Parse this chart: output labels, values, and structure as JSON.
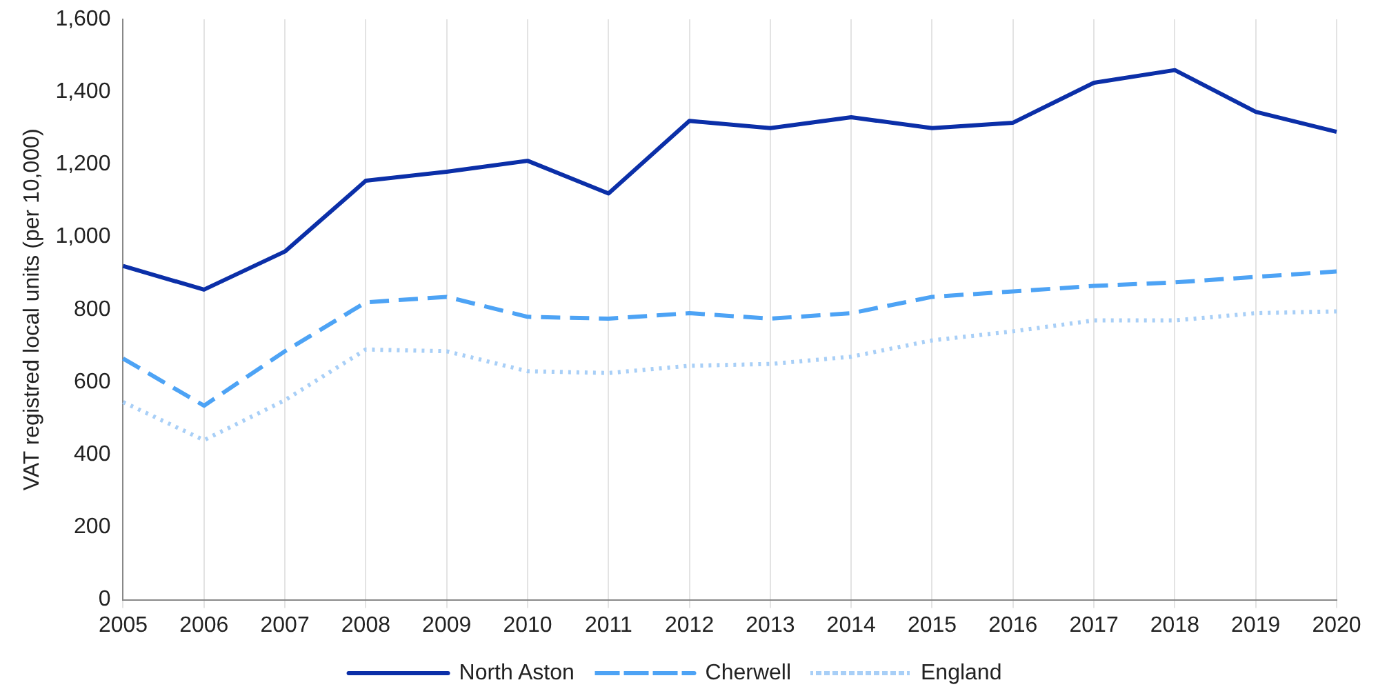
{
  "chart_data": {
    "type": "line",
    "ylabel": "VAT registred local units (per 10,000)",
    "categories": [
      "2005",
      "2006",
      "2007",
      "2008",
      "2009",
      "2010",
      "2011",
      "2012",
      "2013",
      "2014",
      "2015",
      "2016",
      "2017",
      "2018",
      "2019",
      "2020"
    ],
    "series": [
      {
        "name": "North Aston",
        "color": "#0b2fa8",
        "line_style": "solid",
        "values": [
          920,
          855,
          960,
          1155,
          1180,
          1210,
          1120,
          1320,
          1300,
          1330,
          1300,
          1315,
          1425,
          1460,
          1345,
          1290
        ]
      },
      {
        "name": "Cherwell",
        "color": "#4da3f5",
        "line_style": "dashed",
        "values": [
          665,
          535,
          685,
          820,
          835,
          780,
          775,
          790,
          775,
          790,
          835,
          850,
          865,
          875,
          890,
          905
        ]
      },
      {
        "name": "England",
        "color": "#a8cff7",
        "line_style": "dotted",
        "values": [
          545,
          440,
          550,
          690,
          685,
          630,
          625,
          645,
          650,
          670,
          715,
          740,
          770,
          770,
          790,
          795
        ]
      }
    ],
    "ylim": [
      0,
      1600
    ],
    "yticks": [
      0,
      200,
      400,
      600,
      800,
      {
        "value": 1000,
        "label": "1,000"
      },
      {
        "value": 1200,
        "label": "1,200"
      },
      {
        "value": 1400,
        "label": "1,400"
      },
      {
        "value": 1600,
        "label": "1,600"
      }
    ],
    "grid": "x",
    "legend": "bottom",
    "marker": "none"
  }
}
